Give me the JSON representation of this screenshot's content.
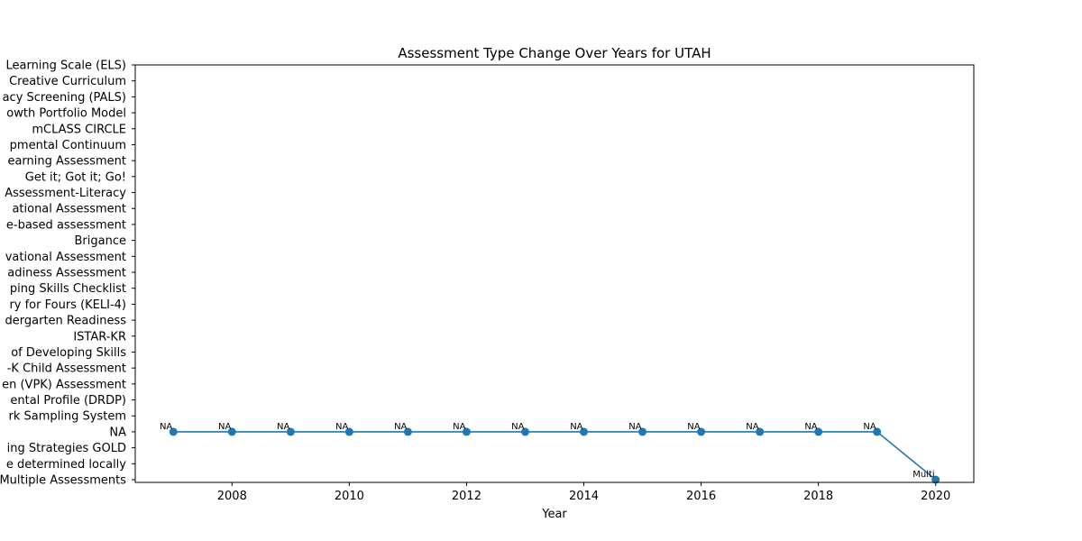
{
  "chart_data": {
    "type": "line",
    "title": "Assessment Type Change Over Years for UTAH",
    "xlabel": "Year",
    "ylabel": "",
    "x_ticks": [
      "2008",
      "2010",
      "2012",
      "2014",
      "2016",
      "2018",
      "2020"
    ],
    "xlim": [
      2006.35,
      2020.65
    ],
    "y_categories": [
      "Multiple Assessments",
      "e determined locally",
      "ing Strategies GOLD",
      "NA",
      "rk Sampling System",
      "ental Profile (DRDP)",
      "en (VPK) Assessment",
      "-K Child Assessment",
      "of Developing Skills",
      "ISTAR-KR",
      "dergarten Readiness",
      "ry for Fours (KELI-4) ",
      "ping Skills Checklist",
      "adiness Assessment",
      "vational Assessment",
      "Brigance",
      "e-based assessment",
      "ational Assessment ",
      "Assessment-Literacy",
      "Get it; Got it; Go!",
      "earning Assessment",
      "pmental Continuum",
      "mCLASS CIRCLE",
      "owth Portfolio Model",
      "acy Screening (PALS)",
      "Creative Curriculum",
      "Learning Scale (ELS)"
    ],
    "series": [
      {
        "name": "",
        "color": "#1f77b4",
        "points": [
          {
            "x": 2007,
            "y": "NA",
            "label": "NA"
          },
          {
            "x": 2008,
            "y": "NA",
            "label": "NA"
          },
          {
            "x": 2009,
            "y": "NA",
            "label": "NA"
          },
          {
            "x": 2010,
            "y": "NA",
            "label": "NA"
          },
          {
            "x": 2011,
            "y": "NA",
            "label": "NA"
          },
          {
            "x": 2012,
            "y": "NA",
            "label": "NA"
          },
          {
            "x": 2013,
            "y": "NA",
            "label": "NA"
          },
          {
            "x": 2014,
            "y": "NA",
            "label": "NA"
          },
          {
            "x": 2015,
            "y": "NA",
            "label": "NA"
          },
          {
            "x": 2016,
            "y": "NA",
            "label": "NA"
          },
          {
            "x": 2017,
            "y": "NA",
            "label": "NA"
          },
          {
            "x": 2018,
            "y": "NA",
            "label": "NA"
          },
          {
            "x": 2019,
            "y": "NA",
            "label": "NA"
          },
          {
            "x": 2020,
            "y": "Multiple Assessments",
            "label": "Multi"
          }
        ]
      }
    ],
    "grid": false,
    "legend": "none"
  }
}
